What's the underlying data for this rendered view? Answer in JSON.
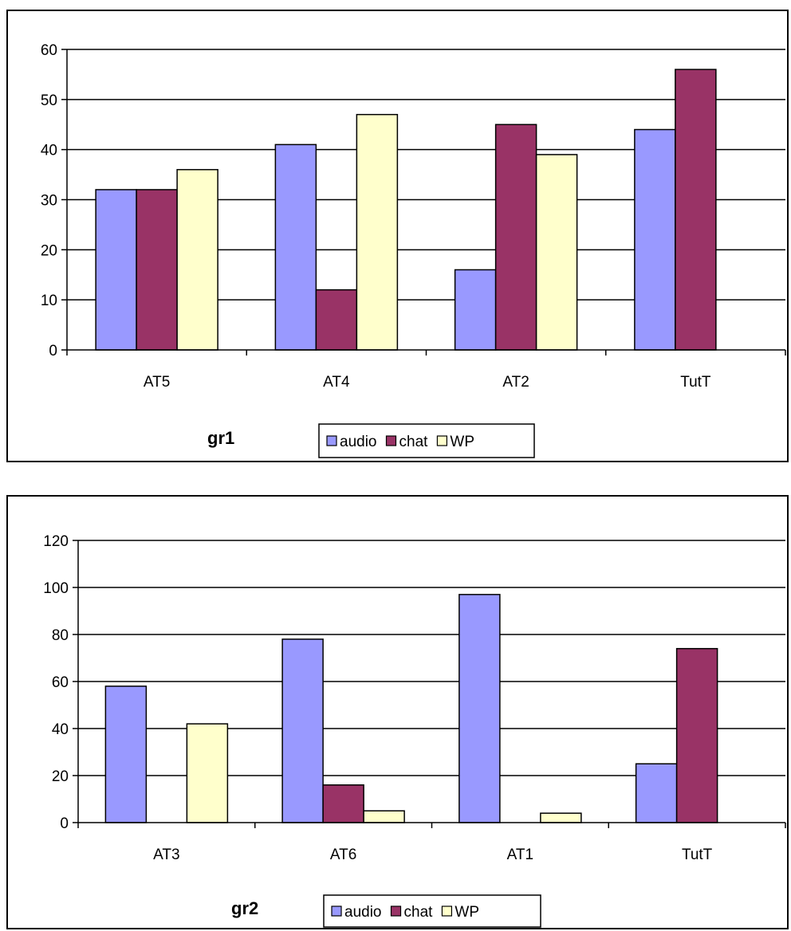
{
  "chart_data": [
    {
      "type": "bar",
      "title": "gr1",
      "categories": [
        "AT5",
        "AT4",
        "AT2",
        "TutT"
      ],
      "series": [
        {
          "name": "audio",
          "color": "#9999ff",
          "values": [
            32,
            41,
            16,
            44
          ]
        },
        {
          "name": "chat",
          "color": "#993366",
          "values": [
            32,
            12,
            45,
            56
          ]
        },
        {
          "name": "WP",
          "color": "#ffffcc",
          "values": [
            36,
            47,
            39,
            0
          ]
        }
      ],
      "ylim": [
        0,
        60
      ],
      "yticks": [
        0,
        10,
        20,
        30,
        40,
        50,
        60
      ],
      "grid": true,
      "legend": "bottom"
    },
    {
      "type": "bar",
      "title": "gr2",
      "categories": [
        "AT3",
        "AT6",
        "AT1",
        "TutT"
      ],
      "series": [
        {
          "name": "audio",
          "color": "#9999ff",
          "values": [
            58,
            78,
            97,
            25
          ]
        },
        {
          "name": "chat",
          "color": "#993366",
          "values": [
            0,
            16,
            0,
            74
          ]
        },
        {
          "name": "WP",
          "color": "#ffffcc",
          "values": [
            42,
            5,
            4,
            0
          ]
        }
      ],
      "ylim": [
        0,
        120
      ],
      "yticks": [
        0,
        20,
        40,
        60,
        80,
        100,
        120
      ],
      "grid": true,
      "legend": "bottom"
    }
  ]
}
